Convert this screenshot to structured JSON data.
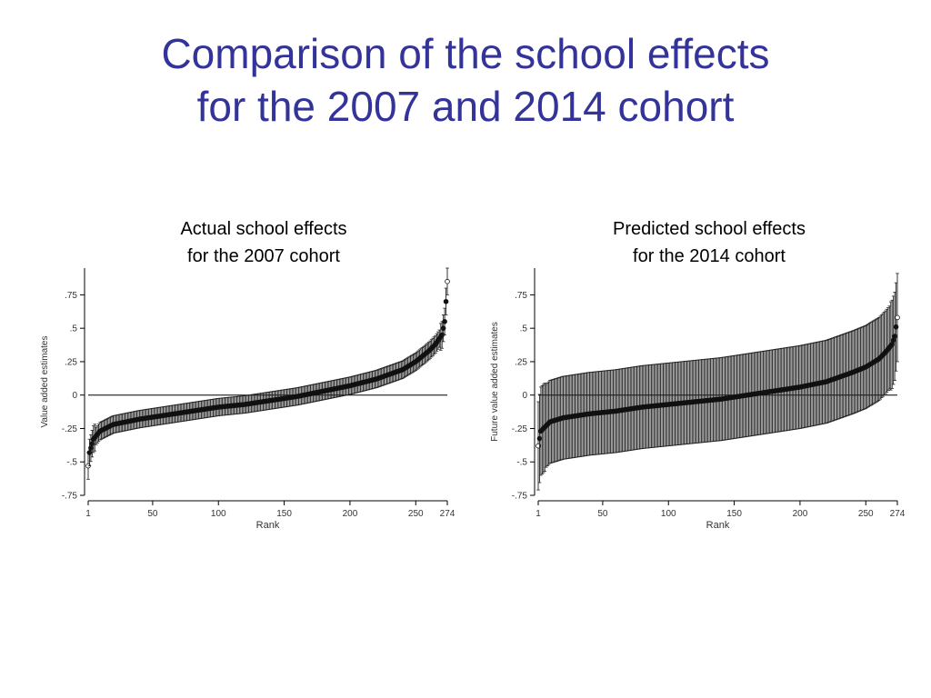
{
  "slide": {
    "title_line1": "Comparison of the school effects",
    "title_line2": "for the 2007 and 2014 cohort",
    "title_color": "#333399"
  },
  "chart_data": [
    {
      "type": "scatter",
      "caption_line1": "Actual school effects",
      "caption_line2": "for the 2007 cohort",
      "xlabel": "Rank",
      "ylabel": "Value added estimates",
      "xlim": [
        1,
        274
      ],
      "ylim": [
        -0.75,
        0.95
      ],
      "x_ticks": [
        1,
        50,
        100,
        150,
        200,
        250,
        274
      ],
      "y_ticks": [
        -0.75,
        -0.5,
        -0.25,
        0,
        0.25,
        0.5,
        0.75
      ],
      "y_tick_labels": [
        "-.75",
        "-.5",
        "-.25",
        "0",
        ".25",
        ".5",
        ".75"
      ],
      "reference_line_y": 0,
      "n_points": 274,
      "estimate_anchors": {
        "rank": [
          1,
          2,
          5,
          10,
          20,
          40,
          60,
          80,
          100,
          120,
          140,
          160,
          180,
          200,
          220,
          240,
          250,
          260,
          265,
          270,
          272,
          274
        ],
        "value": [
          -0.53,
          -0.43,
          -0.33,
          -0.27,
          -0.22,
          -0.18,
          -0.15,
          -0.12,
          -0.09,
          -0.07,
          -0.04,
          -0.01,
          0.03,
          0.07,
          0.12,
          0.19,
          0.25,
          0.33,
          0.38,
          0.45,
          0.55,
          0.85
        ]
      },
      "ci_halfwidth": 0.065,
      "ci_halfwidth_ends": 0.1,
      "marker_color": "#111111"
    },
    {
      "type": "scatter",
      "caption_line1": "Predicted school effects",
      "caption_line2": "for the 2014 cohort",
      "xlabel": "Rank",
      "ylabel": "Future value added estimates",
      "xlim": [
        1,
        274
      ],
      "ylim": [
        -0.75,
        0.95
      ],
      "x_ticks": [
        1,
        50,
        100,
        150,
        200,
        250,
        274
      ],
      "y_ticks": [
        -0.75,
        -0.5,
        -0.25,
        0,
        0.25,
        0.5,
        0.75
      ],
      "y_tick_labels": [
        "-.75",
        "-.5",
        "-.25",
        "0",
        ".25",
        ".5",
        ".75"
      ],
      "reference_line_y": 0,
      "n_points": 274,
      "estimate_anchors": {
        "rank": [
          1,
          3,
          10,
          20,
          40,
          60,
          80,
          100,
          120,
          140,
          160,
          180,
          200,
          220,
          240,
          250,
          260,
          265,
          270,
          272,
          274
        ],
        "value": [
          -0.38,
          -0.27,
          -0.2,
          -0.17,
          -0.14,
          -0.12,
          -0.09,
          -0.07,
          -0.05,
          -0.03,
          0.0,
          0.03,
          0.06,
          0.1,
          0.17,
          0.21,
          0.27,
          0.32,
          0.38,
          0.44,
          0.58
        ]
      },
      "ci_halfwidth": 0.31,
      "ci_halfwidth_ends": 0.33,
      "marker_color": "#111111"
    }
  ]
}
